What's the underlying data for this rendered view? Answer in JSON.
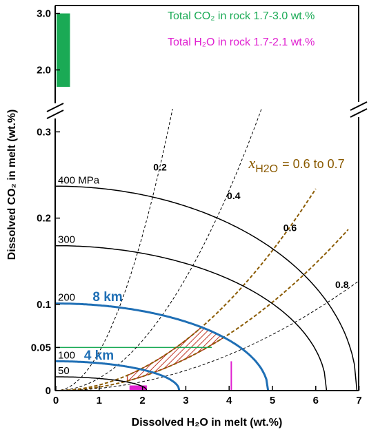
{
  "chart_data": {
    "type": "line",
    "title": "",
    "xlabel": "Dissolved H₂O in melt (wt.%)",
    "ylabel": "Dissolved CO₂ in melt (wt.%)",
    "xlim": [
      0,
      7
    ],
    "ylim_lower": [
      0,
      0.32
    ],
    "ylim_upper": [
      1.6,
      3.1
    ],
    "broken_y_axis": true,
    "grid": false,
    "x_ticks": [
      "0",
      "1",
      "2",
      "3",
      "4",
      "5",
      "6",
      "7"
    ],
    "y_ticks_lower": [
      "0",
      "0.05",
      "0.1",
      "0.2",
      "0.3"
    ],
    "y_ticks_upper": [
      "2.0",
      "3.0"
    ],
    "colors": {
      "isobar": "#000000",
      "depth": "#1f6fb5",
      "xh2o": "#8a5a00",
      "co2_rock": "#1aaa55",
      "h2o_rock": "#e020d0",
      "hatch": "#c0392b",
      "green_line": "#1aaa55"
    },
    "isobars": [
      {
        "label": "400 MPa",
        "y0": 0.237,
        "xmax": 6.95,
        "emph": false
      },
      {
        "label": "300",
        "y0": 0.168,
        "xmax": 6.25,
        "emph": false
      },
      {
        "label": "200",
        "y0": 0.101,
        "xmax": 4.9,
        "emph": true
      },
      {
        "label": "100",
        "y0": 0.034,
        "xmax": 2.85,
        "emph": true
      },
      {
        "label": "50",
        "y0": 0.016,
        "xmax": 2.1,
        "emph": false
      }
    ],
    "depth_labels": [
      {
        "text": "8 km",
        "x": 0.85,
        "y": 0.104
      },
      {
        "text": "4 km",
        "x": 0.65,
        "y": 0.036
      }
    ],
    "xh2o_isopleths": [
      {
        "label": "0.2",
        "k": 0.045,
        "color": "black",
        "xend": 3.0,
        "lx": 2.25,
        "ly": 0.255
      },
      {
        "label": "0.4",
        "k": 0.0145,
        "color": "black",
        "xend": 4.8,
        "lx": 3.95,
        "ly": 0.222
      },
      {
        "label": "0.6",
        "k": 0.0065,
        "color": "brown",
        "xend": 6.0,
        "lx": 5.25,
        "ly": 0.185
      },
      {
        "label": "0.7",
        "k": 0.0041,
        "color": "brown",
        "xend": 6.75,
        "lx": null,
        "ly": null
      },
      {
        "label": "0.8",
        "k": 0.0026,
        "color": "black",
        "xend": 7.0,
        "lx": 6.45,
        "ly": 0.119
      }
    ],
    "xh2o_range_label": {
      "symbol": "x",
      "subscript": "H2O",
      "text": "= 0.6 to 0.7",
      "x": 4.45,
      "y": 0.258
    },
    "co2_rock_range": {
      "label": "Total CO₂ in rock 1.7-3.0 wt.%",
      "ymin": 1.7,
      "ymax": 3.0
    },
    "h2o_rock_range": {
      "label": "Total H₂O in rock 1.7-2.1 wt.%",
      "xmin": 1.7,
      "xmax": 2.1
    },
    "co2_guide": {
      "y": 0.05,
      "x_end": 3.6
    },
    "h2o_guide": {
      "x": 4.05,
      "y_top": 0.034
    }
  }
}
